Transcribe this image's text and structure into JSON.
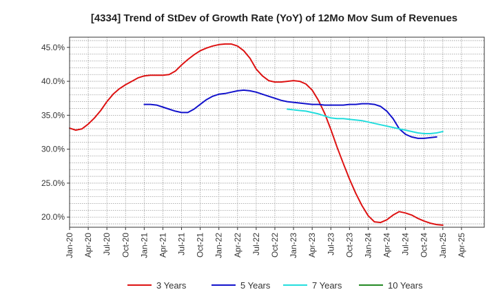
{
  "chart_data": {
    "type": "line",
    "title": "[4334]  Trend of StDev of Growth Rate (YoY) of 12Mo Mov Sum of Revenues",
    "xlabel": "",
    "ylabel": "",
    "ylim": [
      18.5,
      46.5
    ],
    "y_ticks": [
      {
        "value": 20,
        "label": "20.0%"
      },
      {
        "value": 25,
        "label": "25.0%"
      },
      {
        "value": 30,
        "label": "30.0%"
      },
      {
        "value": 35,
        "label": "35.0%"
      },
      {
        "value": 40,
        "label": "40.0%"
      },
      {
        "value": 45,
        "label": "45.0%"
      }
    ],
    "x_range": [
      0,
      60
    ],
    "x_ticks": [
      {
        "value": 0,
        "label": "Jan-20"
      },
      {
        "value": 3,
        "label": "Apr-20"
      },
      {
        "value": 6,
        "label": "Jul-20"
      },
      {
        "value": 9,
        "label": "Oct-20"
      },
      {
        "value": 12,
        "label": "Jan-21"
      },
      {
        "value": 15,
        "label": "Apr-21"
      },
      {
        "value": 18,
        "label": "Jul-21"
      },
      {
        "value": 21,
        "label": "Oct-21"
      },
      {
        "value": 24,
        "label": "Jan-22"
      },
      {
        "value": 27,
        "label": "Apr-22"
      },
      {
        "value": 30,
        "label": "Jul-22"
      },
      {
        "value": 33,
        "label": "Oct-22"
      },
      {
        "value": 36,
        "label": "Jan-23"
      },
      {
        "value": 39,
        "label": "Apr-23"
      },
      {
        "value": 42,
        "label": "Jul-23"
      },
      {
        "value": 45,
        "label": "Oct-23"
      },
      {
        "value": 48,
        "label": "Jan-24"
      },
      {
        "value": 51,
        "label": "Apr-24"
      },
      {
        "value": 54,
        "label": "Jul-24"
      },
      {
        "value": 57,
        "label": "Oct-24"
      },
      {
        "value": 60,
        "label": "Jan-25"
      },
      {
        "value": 63,
        "label": "Apr-25"
      }
    ],
    "grid": true,
    "legend_position": "bottom",
    "series": [
      {
        "name": "3 Years",
        "color": "#dd1111",
        "start": 0,
        "values": [
          33.1,
          32.8,
          33.0,
          33.7,
          34.6,
          35.7,
          37.0,
          38.1,
          38.9,
          39.5,
          40.0,
          40.5,
          40.8,
          40.9,
          40.9,
          40.9,
          41.0,
          41.5,
          42.4,
          43.2,
          43.9,
          44.5,
          44.9,
          45.2,
          45.4,
          45.5,
          45.5,
          45.2,
          44.5,
          43.4,
          41.8,
          40.8,
          40.1,
          39.9,
          39.9,
          40.0,
          40.1,
          40.0,
          39.6,
          38.7,
          37.2,
          35.3,
          32.9,
          30.3,
          27.9,
          25.6,
          23.5,
          21.7,
          20.2,
          19.3,
          19.2,
          19.6,
          20.3,
          20.8,
          20.6,
          20.3,
          19.8,
          19.4,
          19.1,
          18.9,
          18.8
        ]
      },
      {
        "name": "5 Years",
        "color": "#1111cc",
        "start": 12,
        "values": [
          36.6,
          36.6,
          36.5,
          36.2,
          35.9,
          35.6,
          35.4,
          35.4,
          35.9,
          36.6,
          37.3,
          37.8,
          38.1,
          38.2,
          38.4,
          38.6,
          38.7,
          38.6,
          38.4,
          38.1,
          37.8,
          37.5,
          37.2,
          37.0,
          36.9,
          36.8,
          36.7,
          36.6,
          36.6,
          36.5,
          36.5,
          36.5,
          36.5,
          36.6,
          36.6,
          36.7,
          36.7,
          36.6,
          36.3,
          35.6,
          34.5,
          33.0,
          32.2,
          31.8,
          31.6,
          31.6,
          31.7,
          31.8
        ]
      },
      {
        "name": "7 Years",
        "color": "#22dddd",
        "start": 35,
        "values": [
          35.9,
          35.8,
          35.7,
          35.6,
          35.4,
          35.2,
          34.9,
          34.6,
          34.5,
          34.5,
          34.4,
          34.3,
          34.2,
          34.0,
          33.8,
          33.6,
          33.4,
          33.2,
          33.0,
          32.8,
          32.6,
          32.4,
          32.3,
          32.3,
          32.4,
          32.6
        ]
      },
      {
        "name": "10 Years",
        "color": "#228822",
        "start": 0,
        "values": []
      }
    ]
  }
}
